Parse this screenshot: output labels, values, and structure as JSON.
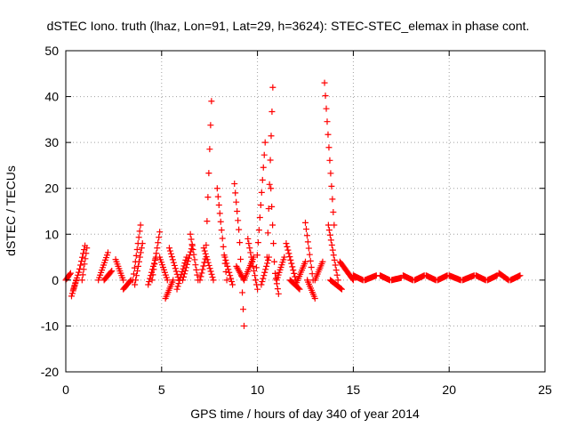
{
  "chart_data": {
    "type": "scatter",
    "title": "dSTEC Iono. truth (lhaz, Lon=91, Lat=29, h=3624): STEC-STEC_elemax in phase cont.",
    "xlabel": "GPS time / hours of day 340 of year 2014",
    "ylabel": "dSTEC  / TECUs",
    "xlim": [
      0,
      25
    ],
    "ylim": [
      -20,
      50
    ],
    "xticks": [
      0,
      5,
      10,
      15,
      20,
      25
    ],
    "yticks": [
      -20,
      -10,
      0,
      10,
      20,
      30,
      40,
      50
    ],
    "grid": true,
    "marker": "+",
    "color": "#ff0000",
    "series": [
      {
        "arcs": [
          {
            "t0": 0.0,
            "t1": 0.25,
            "ys": [
              0,
              1.5
            ]
          },
          {
            "t0": 0.3,
            "t1": 0.55,
            "ys": [
              -3.5,
              0
            ]
          },
          {
            "t0": 0.4,
            "t1": 1.0,
            "ys": [
              -2,
              2,
              7.5
            ]
          },
          {
            "t0": 0.85,
            "t1": 1.1,
            "ys": [
              0,
              7
            ]
          },
          {
            "t0": 1.7,
            "t1": 2.2,
            "ys": [
              0,
              6
            ]
          },
          {
            "t0": 2.0,
            "t1": 2.4,
            "ys": [
              0,
              2
            ]
          },
          {
            "t0": 2.6,
            "t1": 3.0,
            "ys": [
              4.5,
              0
            ]
          },
          {
            "t0": 3.0,
            "t1": 3.4,
            "ys": [
              -2,
              0
            ]
          },
          {
            "t0": 3.5,
            "t1": 3.9,
            "ys": [
              0,
              12
            ]
          },
          {
            "t0": 3.6,
            "t1": 4.0,
            "ys": [
              -1,
              8
            ]
          },
          {
            "t0": 4.3,
            "t1": 4.7,
            "ys": [
              -1,
              5
            ]
          },
          {
            "t0": 4.5,
            "t1": 4.9,
            "ys": [
              0,
              10.5
            ]
          },
          {
            "t0": 4.9,
            "t1": 5.3,
            "ys": [
              5,
              0
            ]
          },
          {
            "t0": 5.2,
            "t1": 5.6,
            "ys": [
              -4,
              0
            ]
          },
          {
            "t0": 5.4,
            "t1": 5.9,
            "ys": [
              7,
              0
            ]
          },
          {
            "t0": 5.8,
            "t1": 6.3,
            "ys": [
              -2,
              5
            ]
          },
          {
            "t0": 6.1,
            "t1": 6.6,
            "ys": [
              0,
              7.5
            ]
          },
          {
            "t0": 6.5,
            "t1": 6.9,
            "ys": [
              10,
              0
            ]
          },
          {
            "t0": 7.0,
            "t1": 7.6,
            "ys": [
              0,
              5,
              39
            ]
          },
          {
            "t0": 7.2,
            "t1": 7.7,
            "ys": [
              7,
              0
            ]
          },
          {
            "t0": 7.9,
            "t1": 8.4,
            "ys": [
              20,
              0
            ]
          },
          {
            "t0": 8.3,
            "t1": 8.7,
            "ys": [
              5,
              -1
            ]
          },
          {
            "t0": 8.8,
            "t1": 9.3,
            "ys": [
              21,
              10,
              -10
            ]
          },
          {
            "t0": 8.9,
            "t1": 9.3,
            "ys": [
              3,
              0
            ]
          },
          {
            "t0": 9.3,
            "t1": 9.8,
            "ys": [
              0,
              5
            ]
          },
          {
            "t0": 9.5,
            "t1": 10.0,
            "ys": [
              9,
              -2
            ]
          },
          {
            "t0": 9.9,
            "t1": 10.4,
            "ys": [
              0,
              30
            ]
          },
          {
            "t0": 10.2,
            "t1": 10.6,
            "ys": [
              -1,
              5
            ]
          },
          {
            "t0": 10.5,
            "t1": 10.8,
            "ys": [
              5,
              42
            ]
          },
          {
            "t0": 10.7,
            "t1": 11.1,
            "ys": [
              20,
              2,
              -3
            ]
          },
          {
            "t0": 11.0,
            "t1": 11.4,
            "ys": [
              0,
              5
            ]
          },
          {
            "t0": 11.5,
            "t1": 12.0,
            "ys": [
              8,
              0
            ]
          },
          {
            "t0": 11.7,
            "t1": 12.2,
            "ys": [
              0,
              -2
            ]
          },
          {
            "t0": 12.0,
            "t1": 12.5,
            "ys": [
              -1,
              4
            ]
          },
          {
            "t0": 12.5,
            "t1": 12.9,
            "ys": [
              12.5,
              0
            ]
          },
          {
            "t0": 12.6,
            "t1": 13.0,
            "ys": [
              0,
              -4
            ]
          },
          {
            "t0": 13.0,
            "t1": 13.4,
            "ys": [
              0,
              4
            ]
          },
          {
            "t0": 13.5,
            "t1": 14.0,
            "ys": [
              43,
              12
            ]
          },
          {
            "t0": 13.7,
            "t1": 14.2,
            "ys": [
              12,
              0
            ]
          },
          {
            "t0": 13.8,
            "t1": 14.4,
            "ys": [
              0,
              -2
            ]
          },
          {
            "t0": 14.3,
            "t1": 15.0,
            "ys": [
              4,
              0
            ]
          },
          {
            "t0": 15.0,
            "t1": 15.5,
            "ys": [
              1,
              0
            ]
          },
          {
            "t0": 15.6,
            "t1": 16.2,
            "ys": [
              0,
              1
            ]
          },
          {
            "t0": 16.4,
            "t1": 16.9,
            "ys": [
              1,
              0
            ]
          },
          {
            "t0": 17.0,
            "t1": 17.5,
            "ys": [
              0,
              0.5
            ]
          },
          {
            "t0": 17.6,
            "t1": 18.1,
            "ys": [
              1,
              0
            ]
          },
          {
            "t0": 18.2,
            "t1": 18.7,
            "ys": [
              0,
              1
            ]
          },
          {
            "t0": 18.8,
            "t1": 19.3,
            "ys": [
              1,
              0
            ]
          },
          {
            "t0": 19.4,
            "t1": 19.9,
            "ys": [
              0,
              1
            ]
          },
          {
            "t0": 20.0,
            "t1": 20.6,
            "ys": [
              1,
              0
            ]
          },
          {
            "t0": 20.7,
            "t1": 21.3,
            "ys": [
              0,
              1
            ]
          },
          {
            "t0": 21.4,
            "t1": 21.9,
            "ys": [
              1,
              0
            ]
          },
          {
            "t0": 22.0,
            "t1": 22.5,
            "ys": [
              0,
              1
            ]
          },
          {
            "t0": 22.6,
            "t1": 23.1,
            "ys": [
              1.5,
              0
            ]
          },
          {
            "t0": 23.2,
            "t1": 23.7,
            "ys": [
              0,
              1
            ]
          }
        ]
      }
    ]
  }
}
